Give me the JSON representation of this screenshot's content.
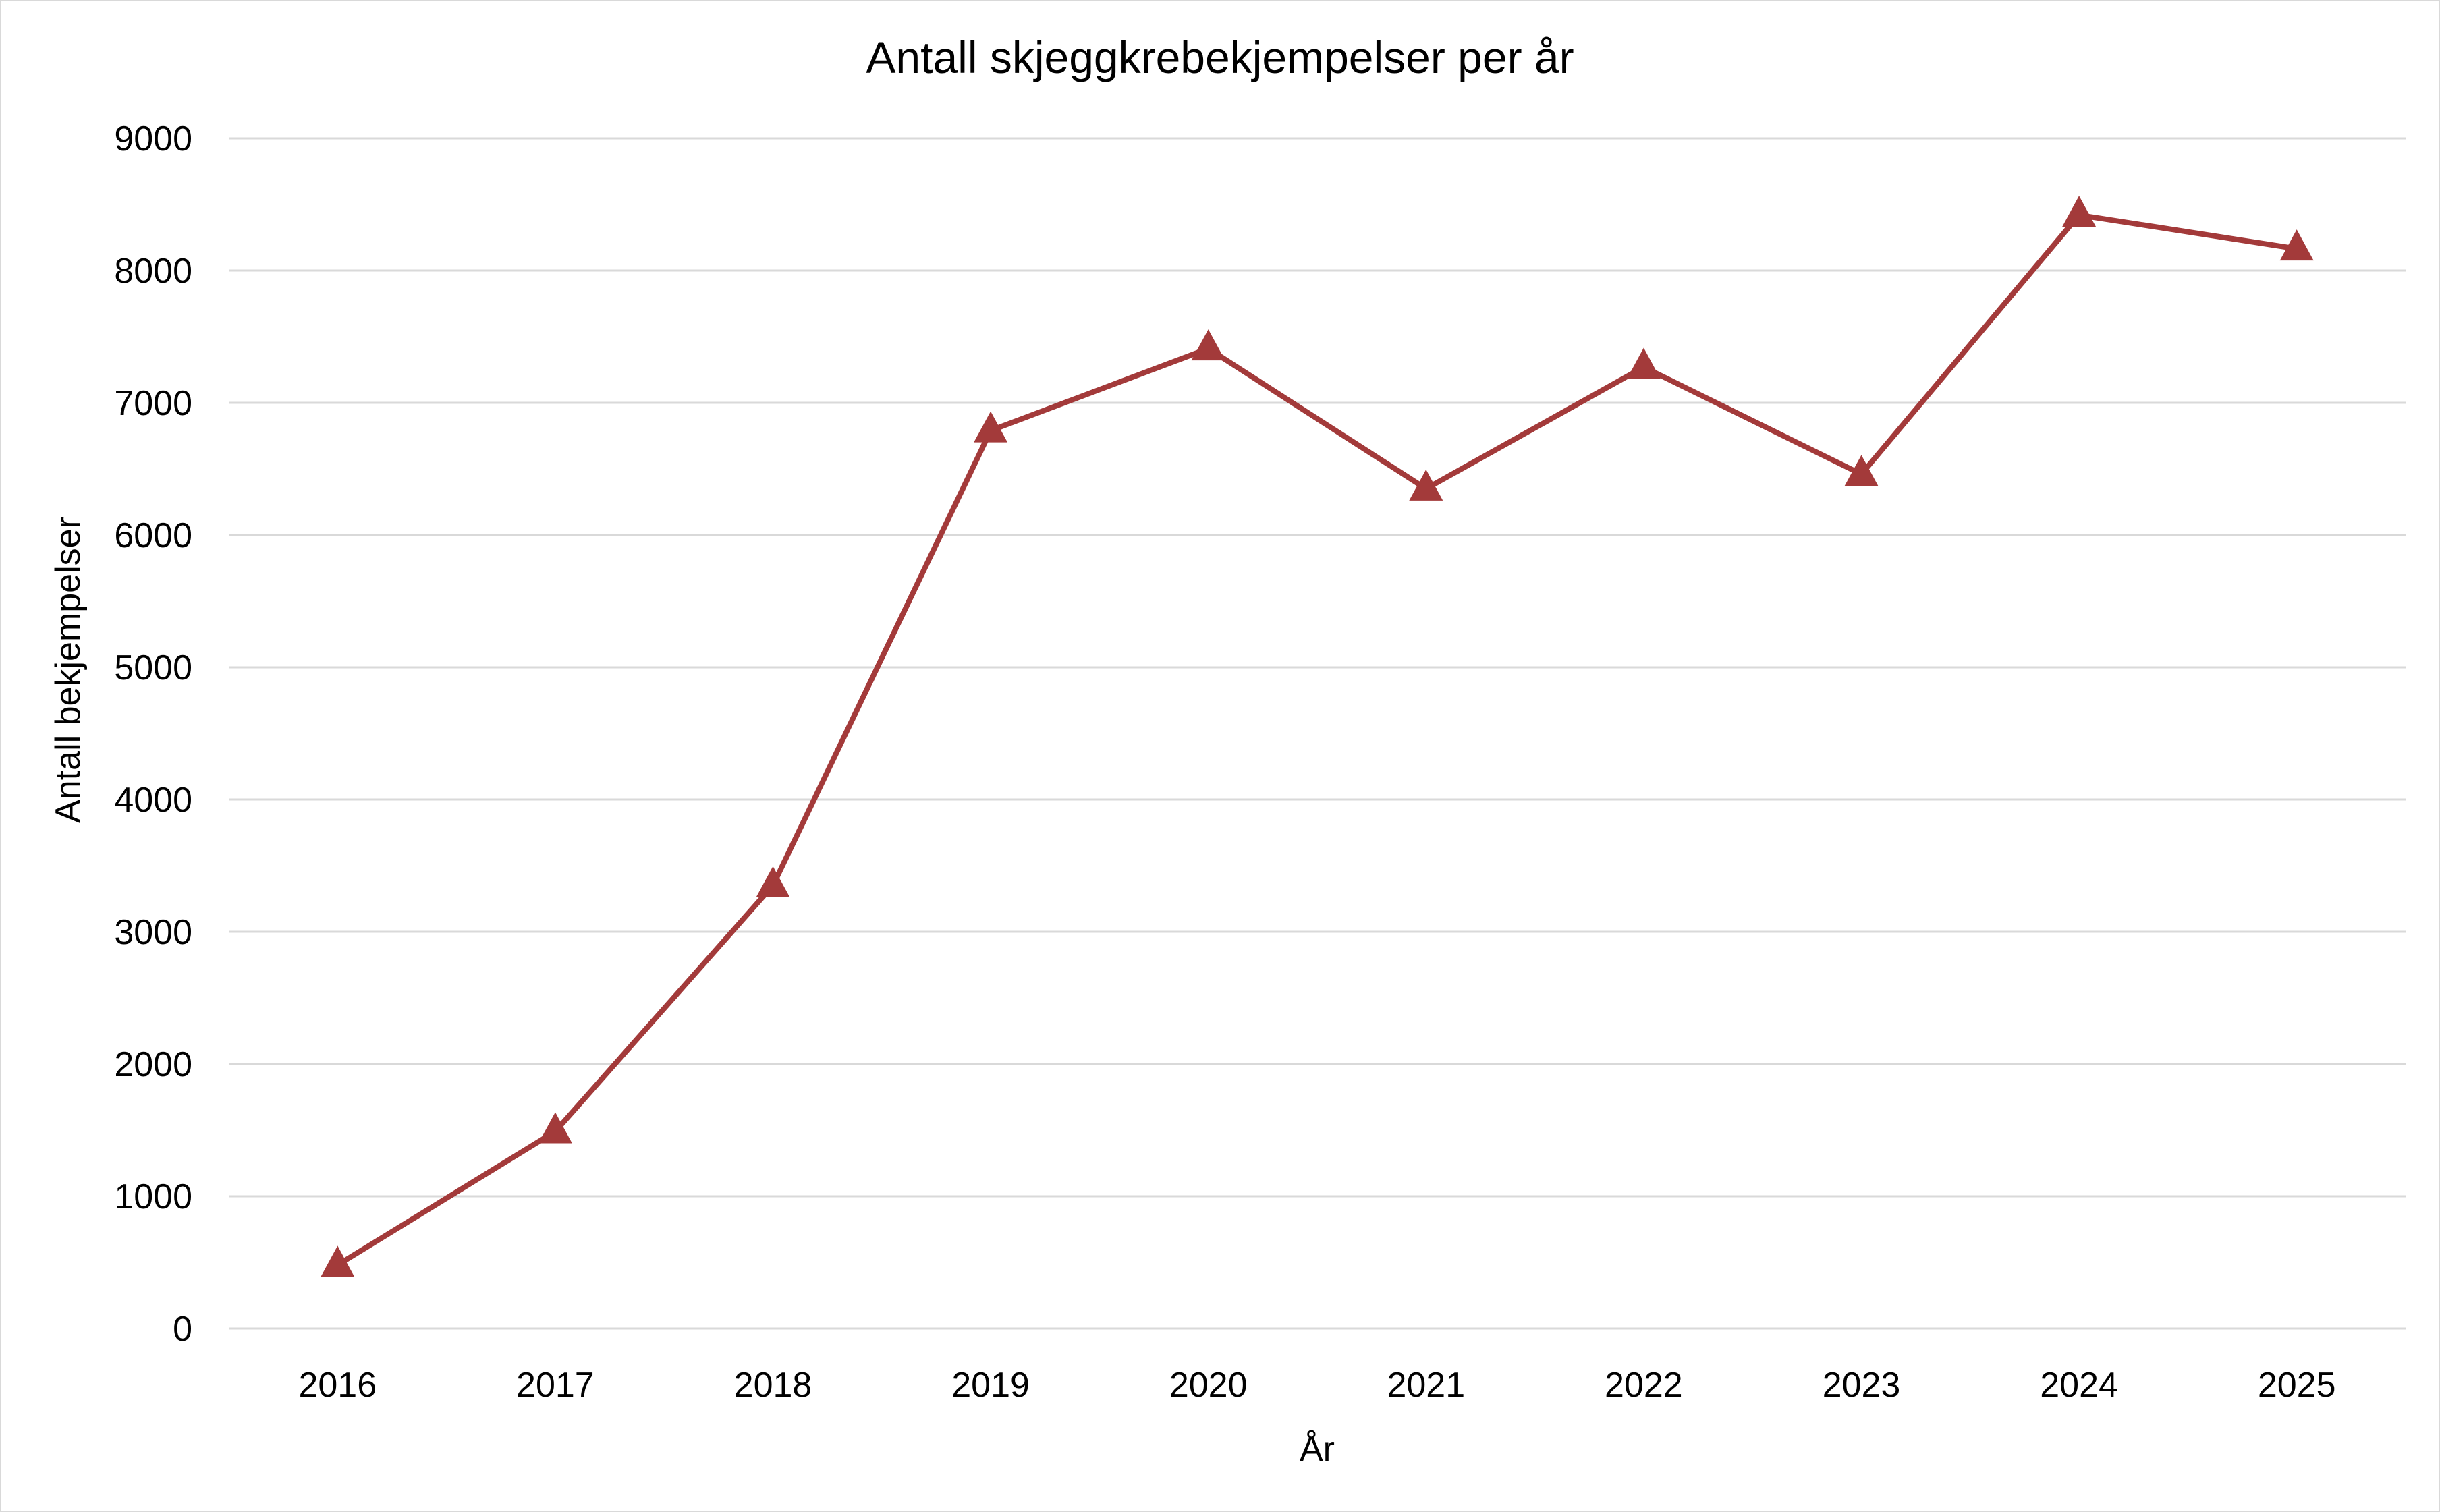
{
  "chart_data": {
    "type": "line",
    "title": "Antall skjeggkrebekjempelser per år",
    "xlabel": "År",
    "ylabel": "Antall bekjempelser",
    "categories": [
      "2016",
      "2017",
      "2018",
      "2019",
      "2020",
      "2021",
      "2022",
      "2023",
      "2024",
      "2025"
    ],
    "series": [
      {
        "name": "Antall bekjempelser",
        "values": [
          480,
          1490,
          3350,
          6790,
          7410,
          6350,
          7270,
          6460,
          8420,
          8165
        ],
        "color": "#A33A3A",
        "marker": "triangle"
      }
    ],
    "ylim": [
      0,
      9000
    ],
    "yticks": [
      "0",
      "1000",
      "2000",
      "3000",
      "4000",
      "5000",
      "6000",
      "7000",
      "8000",
      "9000"
    ],
    "grid": true,
    "gridColor": "#d9d9d9",
    "legend": "none"
  }
}
